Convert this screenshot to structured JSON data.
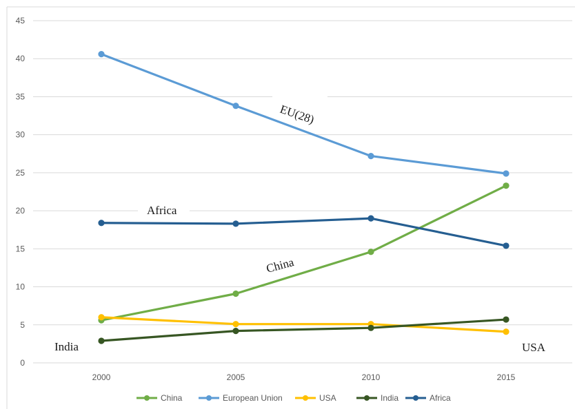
{
  "chart_data": {
    "type": "line",
    "x": [
      "2000",
      "2005",
      "2010",
      "2015"
    ],
    "ylim": [
      0,
      45
    ],
    "yticks": [
      "0",
      "5",
      "10",
      "15",
      "20",
      "25",
      "30",
      "35",
      "40",
      "45"
    ],
    "grid": true,
    "legend_position": "bottom",
    "series": [
      {
        "name": "China",
        "color": "#70ad47",
        "values": [
          5.6,
          9.1,
          14.6,
          23.3
        ]
      },
      {
        "name": "European Union",
        "color": "#5b9bd5",
        "values": [
          40.6,
          33.8,
          27.2,
          24.9
        ]
      },
      {
        "name": "USA",
        "color": "#ffc000",
        "values": [
          6.0,
          5.1,
          5.1,
          4.1
        ]
      },
      {
        "name": "India",
        "color": "#375623",
        "values": [
          2.9,
          4.2,
          4.6,
          5.7
        ]
      },
      {
        "name": "Africa",
        "color": "#255e91",
        "values": [
          18.4,
          18.3,
          19.0,
          15.4
        ]
      }
    ],
    "annotations": [
      {
        "text": "EU(28)",
        "series": "European Union"
      },
      {
        "text": "Africa",
        "series": "Africa"
      },
      {
        "text": "China",
        "series": "China"
      },
      {
        "text": "India",
        "series": "India"
      },
      {
        "text": "USA",
        "series": "USA"
      }
    ]
  }
}
